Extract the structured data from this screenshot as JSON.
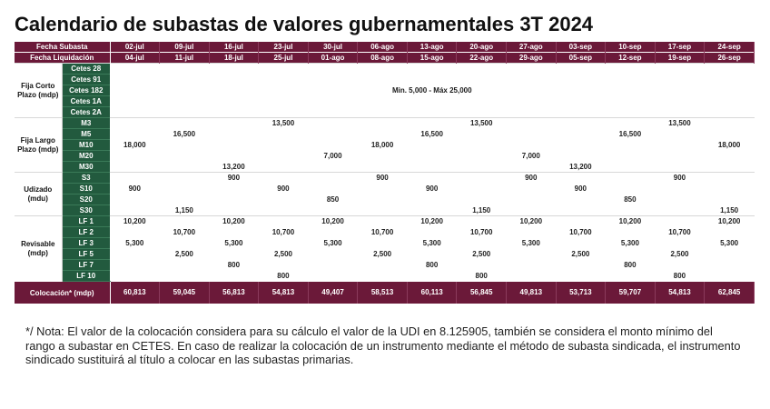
{
  "title": "Calendario de subastas de valores gubernamentales 3T 2024",
  "header": {
    "fecha_subasta_label": "Fecha Subasta",
    "fecha_liquidacion_label": "Fecha Liquidación",
    "subasta": [
      "02-jul",
      "09-jul",
      "16-jul",
      "23-jul",
      "30-jul",
      "06-ago",
      "13-ago",
      "20-ago",
      "27-ago",
      "03-sep",
      "10-sep",
      "17-sep",
      "24-sep"
    ],
    "liquidacion": [
      "04-jul",
      "11-jul",
      "18-jul",
      "25-jul",
      "01-ago",
      "08-ago",
      "15-ago",
      "22-ago",
      "29-ago",
      "05-sep",
      "12-sep",
      "19-sep",
      "26-sep"
    ]
  },
  "sections": {
    "corto": {
      "label": "Fija Corto Plazo (mdp)",
      "instruments": [
        "Cetes 28",
        "Cetes 91",
        "Cetes 182",
        "Cetes 1A",
        "Cetes 2A"
      ],
      "range": "Min. 5,000 - Máx 25,000"
    },
    "largo": {
      "label": "Fija Largo Plazo (mdp)",
      "instruments": [
        "M3",
        "M5",
        "M10",
        "M20",
        "M30"
      ],
      "rows": [
        [
          "",
          "",
          "",
          "13,500",
          "",
          "",
          "",
          "13,500",
          "",
          "",
          "",
          "13,500",
          ""
        ],
        [
          "",
          "16,500",
          "",
          "",
          "",
          "",
          "16,500",
          "",
          "",
          "",
          "16,500",
          "",
          ""
        ],
        [
          "18,000",
          "",
          "",
          "",
          "",
          "18,000",
          "",
          "",
          "",
          "",
          "",
          "",
          "18,000"
        ],
        [
          "",
          "",
          "",
          "",
          "7,000",
          "",
          "",
          "",
          "7,000",
          "",
          "",
          "",
          ""
        ],
        [
          "",
          "",
          "13,200",
          "",
          "",
          "",
          "",
          "",
          "",
          "13,200",
          "",
          "",
          ""
        ]
      ]
    },
    "udizado": {
      "label": "Udizado (mdu)",
      "instruments": [
        "S3",
        "S10",
        "S20",
        "S30"
      ],
      "rows": [
        [
          "",
          "",
          "900",
          "",
          "",
          "900",
          "",
          "",
          "900",
          "",
          "",
          "900",
          ""
        ],
        [
          "900",
          "",
          "",
          "900",
          "",
          "",
          "900",
          "",
          "",
          "900",
          "",
          "",
          ""
        ],
        [
          "",
          "",
          "",
          "",
          "850",
          "",
          "",
          "",
          "",
          "",
          "850",
          "",
          ""
        ],
        [
          "",
          "1,150",
          "",
          "",
          "",
          "",
          "",
          "1,150",
          "",
          "",
          "",
          "",
          "1,150"
        ]
      ]
    },
    "revisable": {
      "label": "Revisable (mdp)",
      "instruments": [
        "LF 1",
        "LF 2",
        "LF 3",
        "LF 5",
        "LF 7",
        "LF 10"
      ],
      "rows": [
        [
          "10,200",
          "",
          "10,200",
          "",
          "10,200",
          "",
          "10,200",
          "",
          "10,200",
          "",
          "10,200",
          "",
          "10,200"
        ],
        [
          "",
          "10,700",
          "",
          "10,700",
          "",
          "10,700",
          "",
          "10,700",
          "",
          "10,700",
          "",
          "10,700",
          ""
        ],
        [
          "5,300",
          "",
          "5,300",
          "",
          "5,300",
          "",
          "5,300",
          "",
          "5,300",
          "",
          "5,300",
          "",
          "5,300"
        ],
        [
          "",
          "2,500",
          "",
          "2,500",
          "",
          "2,500",
          "",
          "2,500",
          "",
          "2,500",
          "",
          "2,500",
          ""
        ],
        [
          "",
          "",
          "800",
          "",
          "",
          "",
          "800",
          "",
          "",
          "",
          "800",
          "",
          ""
        ],
        [
          "",
          "",
          "",
          "800",
          "",
          "",
          "",
          "800",
          "",
          "",
          "",
          "800",
          ""
        ]
      ]
    }
  },
  "colocacion": {
    "label": "Colocación* (mdp)",
    "values": [
      "60,813",
      "59,045",
      "56,813",
      "54,813",
      "49,407",
      "58,513",
      "60,113",
      "56,845",
      "49,813",
      "53,713",
      "59,707",
      "54,813",
      "62,845"
    ]
  },
  "note": "*/ Nota: El valor de la colocación considera para su cálculo el valor de la UDI en 8.125905, también se considera el monto mínimo del rango a subastar en CETES. En caso de realizar la colocación de un instrumento mediante el método de subasta sindicada, el instrumento sindicado sustituirá al título a colocar en las subastas primarias.",
  "colors": {
    "header": "#6b1939",
    "instrument": "#225a3e"
  }
}
